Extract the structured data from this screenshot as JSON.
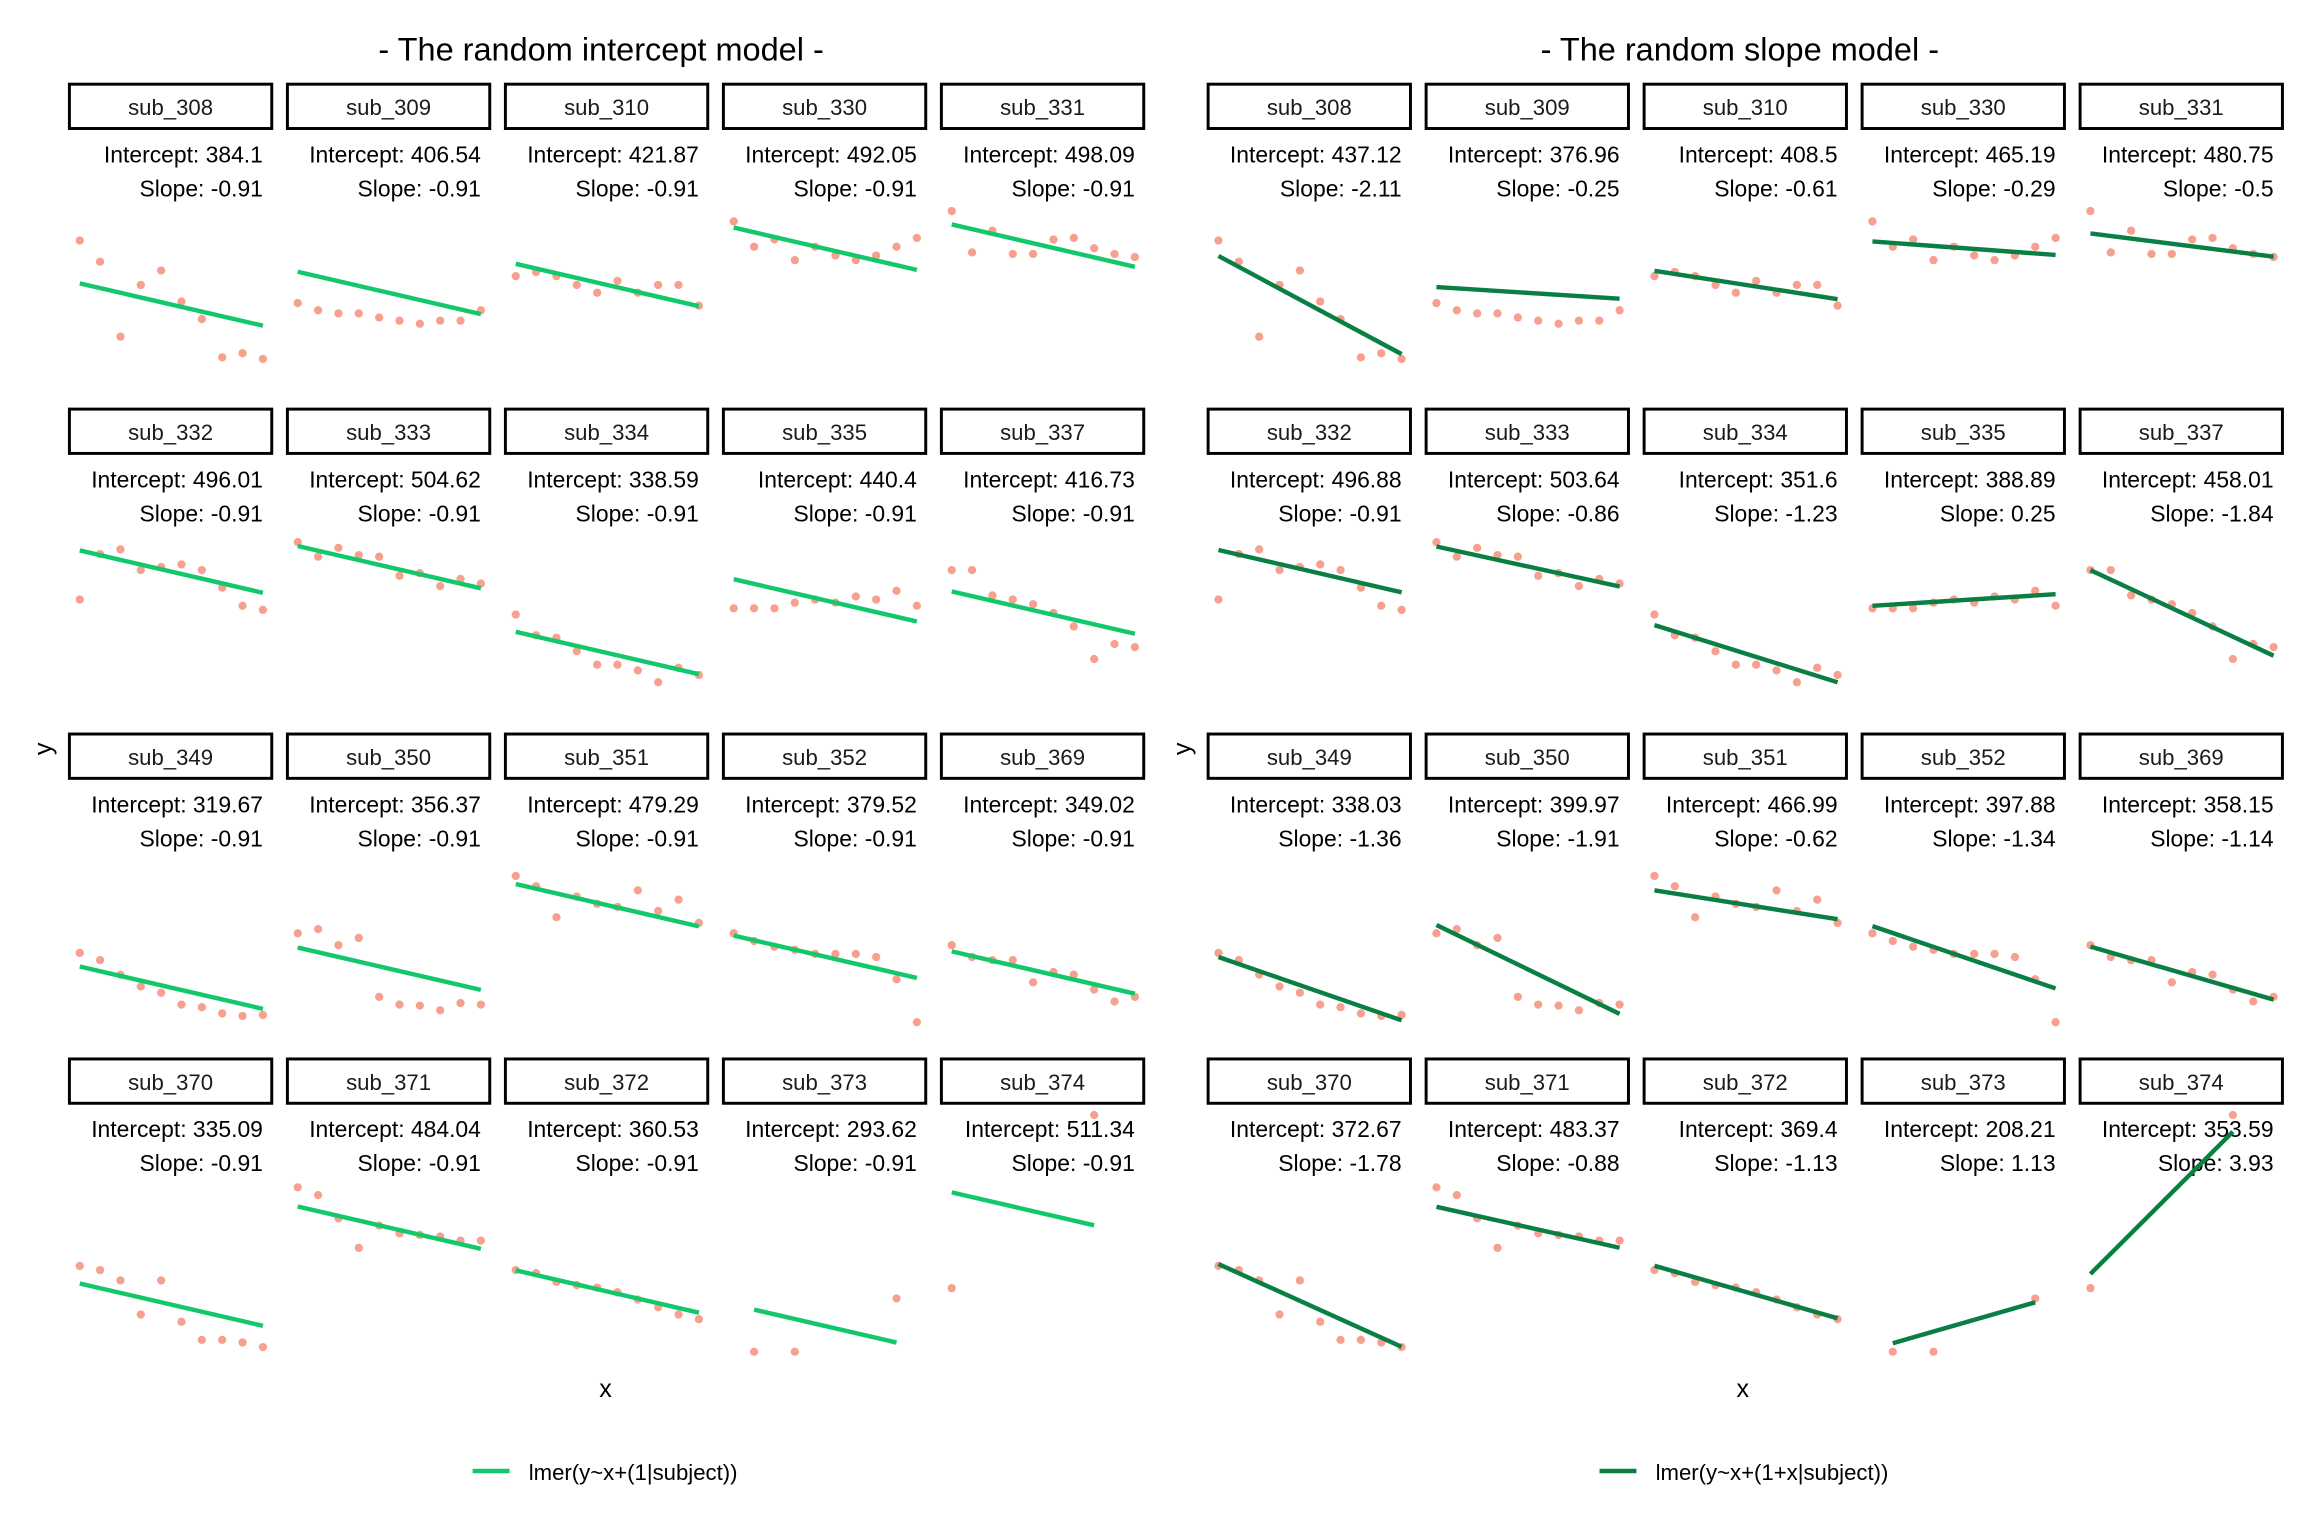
{
  "colors": {
    "points": "#f8a08f",
    "intercept_line": "#12c86a",
    "slope_line": "#0a7f44"
  },
  "labels": {
    "intercept_prefix": "Intercept: ",
    "slope_prefix": "Slope: "
  },
  "chart_data": [
    {
      "type": "scatter",
      "title": "- The random intercept model -",
      "xlabel": "x",
      "ylabel": "y",
      "model_key": "ri",
      "legend": {
        "label": "lmer(y~x+(1|subject))",
        "placement": "bottom"
      },
      "xlim": [
        0,
        90
      ],
      "ylim": [
        195,
        680
      ]
    },
    {
      "type": "scatter",
      "title": "- The random slope model -",
      "xlabel": "x",
      "ylabel": "y",
      "model_key": "rs",
      "legend": {
        "label": "lmer(y~x+(1+x|subject))",
        "placement": "bottom"
      },
      "xlim": [
        0,
        90
      ],
      "ylim": [
        195,
        680
      ]
    }
  ],
  "panels": [
    {
      "subject": "sub_308",
      "ri": {
        "intercept": "384.1",
        "slope": "-0.91"
      },
      "rs": {
        "intercept": "437.12",
        "slope": "-2.11"
      },
      "y": [
        467,
        426,
        281,
        381,
        409,
        349,
        315,
        241,
        249,
        238
      ]
    },
    {
      "subject": "sub_309",
      "ri": {
        "intercept": "406.54",
        "slope": "-0.91"
      },
      "rs": {
        "intercept": "376.96",
        "slope": "-0.25"
      },
      "y": [
        346,
        332,
        326,
        326,
        318,
        312,
        306,
        312,
        312,
        332
      ]
    },
    {
      "subject": "sub_310",
      "ri": {
        "intercept": "421.87",
        "slope": "-0.91"
      },
      "rs": {
        "intercept": "408.5",
        "slope": "-0.61"
      },
      "y": [
        398,
        406,
        398,
        381,
        366,
        389,
        366,
        381,
        381,
        341
      ]
    },
    {
      "subject": "sub_330",
      "ri": {
        "intercept": "492.05",
        "slope": "-0.91"
      },
      "rs": {
        "intercept": "465.19",
        "slope": "-0.29"
      },
      "y": [
        504,
        455,
        469,
        429,
        455,
        438,
        429,
        438,
        455,
        472
      ]
    },
    {
      "subject": "sub_331",
      "ri": {
        "intercept": "498.09",
        "slope": "-0.91"
      },
      "rs": {
        "intercept": "480.75",
        "slope": "-0.5"
      },
      "y": [
        524,
        444,
        486,
        441,
        441,
        469,
        472,
        452,
        441,
        435
      ]
    },
    {
      "subject": "sub_332",
      "ri": {
        "intercept": "496.01",
        "slope": "-0.91"
      },
      "rs": {
        "intercept": "496.88",
        "slope": "-0.91"
      },
      "y": [
        401,
        489,
        498,
        458,
        464,
        469,
        458,
        424,
        389,
        381
      ]
    },
    {
      "subject": "sub_333",
      "ri": {
        "intercept": "504.62",
        "slope": "-0.91"
      },
      "rs": {
        "intercept": "503.64",
        "slope": "-0.86"
      },
      "y": [
        512,
        484,
        501,
        487,
        484,
        447,
        452,
        427,
        441,
        432
      ]
    },
    {
      "subject": "sub_334",
      "ri": {
        "intercept": "338.59",
        "slope": "-0.91"
      },
      "rs": {
        "intercept": "351.6",
        "slope": "-1.23"
      },
      "y": [
        372,
        332,
        327,
        301,
        275,
        275,
        264,
        241,
        269,
        255
      ]
    },
    {
      "subject": "sub_335",
      "ri": {
        "intercept": "440.4",
        "slope": "-0.91"
      },
      "rs": {
        "intercept": "388.89",
        "slope": "0.25"
      },
      "y": [
        384,
        384,
        384,
        395,
        401,
        395,
        407,
        401,
        418,
        389
      ]
    },
    {
      "subject": "sub_337",
      "ri": {
        "intercept": "416.73",
        "slope": "-0.91"
      },
      "rs": {
        "intercept": "458.01",
        "slope": "-1.84"
      },
      "y": [
        458,
        458,
        409,
        401,
        392,
        375,
        349,
        286,
        315,
        309
      ]
    },
    {
      "subject": "sub_349",
      "ri": {
        "intercept": "319.67",
        "slope": "-0.91"
      },
      "rs": {
        "intercept": "338.03",
        "slope": "-1.36"
      },
      "y": [
        346,
        332,
        304,
        281,
        269,
        246,
        241,
        229,
        224,
        226
      ]
    },
    {
      "subject": "sub_350",
      "ri": {
        "intercept": "356.37",
        "slope": "-0.91"
      },
      "rs": {
        "intercept": "399.97",
        "slope": "-1.91"
      },
      "y": [
        384,
        392,
        361,
        375,
        261,
        246,
        244,
        235,
        249,
        246
      ]
    },
    {
      "subject": "sub_351",
      "ri": {
        "intercept": "479.29",
        "slope": "-0.91"
      },
      "rs": {
        "intercept": "466.99",
        "slope": "-0.62"
      },
      "y": [
        495,
        475,
        415,
        455,
        441,
        435,
        467,
        427,
        449,
        404
      ]
    },
    {
      "subject": "sub_352",
      "ri": {
        "intercept": "379.52",
        "slope": "-0.91"
      },
      "rs": {
        "intercept": "397.88",
        "slope": "-1.34"
      },
      "y": [
        384,
        369,
        358,
        352,
        344,
        344,
        344,
        338,
        295,
        212
      ]
    },
    {
      "subject": "sub_369",
      "ri": {
        "intercept": "349.02",
        "slope": "-0.91"
      },
      "rs": {
        "intercept": "358.15",
        "slope": "-1.14"
      },
      "y": [
        361,
        338,
        332,
        332,
        289,
        309,
        304,
        275,
        252,
        261
      ]
    },
    {
      "subject": "sub_370",
      "ri": {
        "intercept": "335.09",
        "slope": "-0.91"
      },
      "rs": {
        "intercept": "372.67",
        "slope": "-1.78"
      },
      "y": [
        369,
        361,
        341,
        275,
        341,
        261,
        226,
        226,
        221,
        212
      ]
    },
    {
      "subject": "sub_371",
      "ri": {
        "intercept": "484.04",
        "slope": "-0.91"
      },
      "rs": {
        "intercept": "483.37",
        "slope": "-0.88"
      },
      "y": [
        521,
        506,
        461,
        404,
        447,
        432,
        429,
        426,
        418,
        418
      ]
    },
    {
      "subject": "sub_372",
      "ri": {
        "intercept": "360.53",
        "slope": "-0.91"
      },
      "rs": {
        "intercept": "369.4",
        "slope": "-1.13"
      },
      "y": [
        361,
        355,
        338,
        332,
        327,
        318,
        304,
        289,
        275,
        266
      ]
    },
    {
      "subject": "sub_373",
      "ri": {
        "intercept": "293.62",
        "slope": "-0.91"
      },
      "rs": {
        "intercept": "208.21",
        "slope": "1.13"
      },
      "x": [
        10,
        30,
        80
      ],
      "y": [
        203,
        203,
        306
      ]
    },
    {
      "subject": "sub_374",
      "ri": {
        "intercept": "511.34",
        "slope": "-0.91"
      },
      "rs": {
        "intercept": "353.59",
        "slope": "3.93"
      },
      "x": [
        0,
        70
      ],
      "y": [
        326,
        661
      ]
    }
  ]
}
